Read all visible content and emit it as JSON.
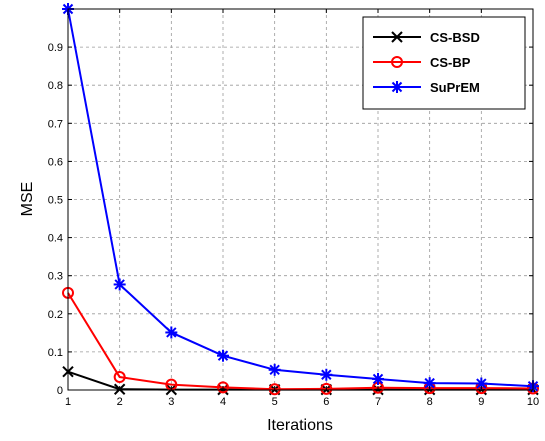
{
  "chart_data": {
    "type": "line",
    "xlabel": "Iterations",
    "ylabel": "MSE",
    "xlim": [
      1,
      10
    ],
    "ylim": [
      0,
      1
    ],
    "grid": true,
    "legend_position": "top-right",
    "x": [
      1,
      2,
      3,
      4,
      5,
      6,
      7,
      8,
      9,
      10
    ],
    "x_ticks": [
      "1",
      "2",
      "3",
      "4",
      "5",
      "6",
      "7",
      "8",
      "9",
      "10"
    ],
    "y_ticks": [
      "0",
      "0.1",
      "0.2",
      "0.3",
      "0.4",
      "0.5",
      "0.6",
      "0.7",
      "0.8",
      "0.9"
    ],
    "series": [
      {
        "name": "CS-BSD",
        "color": "#000000",
        "marker": "x",
        "values": [
          0.048,
          0.002,
          0.001,
          0.001,
          0.001,
          0.001,
          0.001,
          0.001,
          0.001,
          0.001
        ]
      },
      {
        "name": "CS-BP",
        "color": "#ff0000",
        "marker": "circle",
        "values": [
          0.255,
          0.034,
          0.014,
          0.007,
          0.002,
          0.003,
          0.006,
          0.005,
          0.005,
          0.004
        ]
      },
      {
        "name": "SuPrEM",
        "color": "#0000ff",
        "marker": "star",
        "values": [
          1.0,
          0.277,
          0.151,
          0.09,
          0.053,
          0.04,
          0.029,
          0.018,
          0.017,
          0.01
        ]
      }
    ]
  }
}
